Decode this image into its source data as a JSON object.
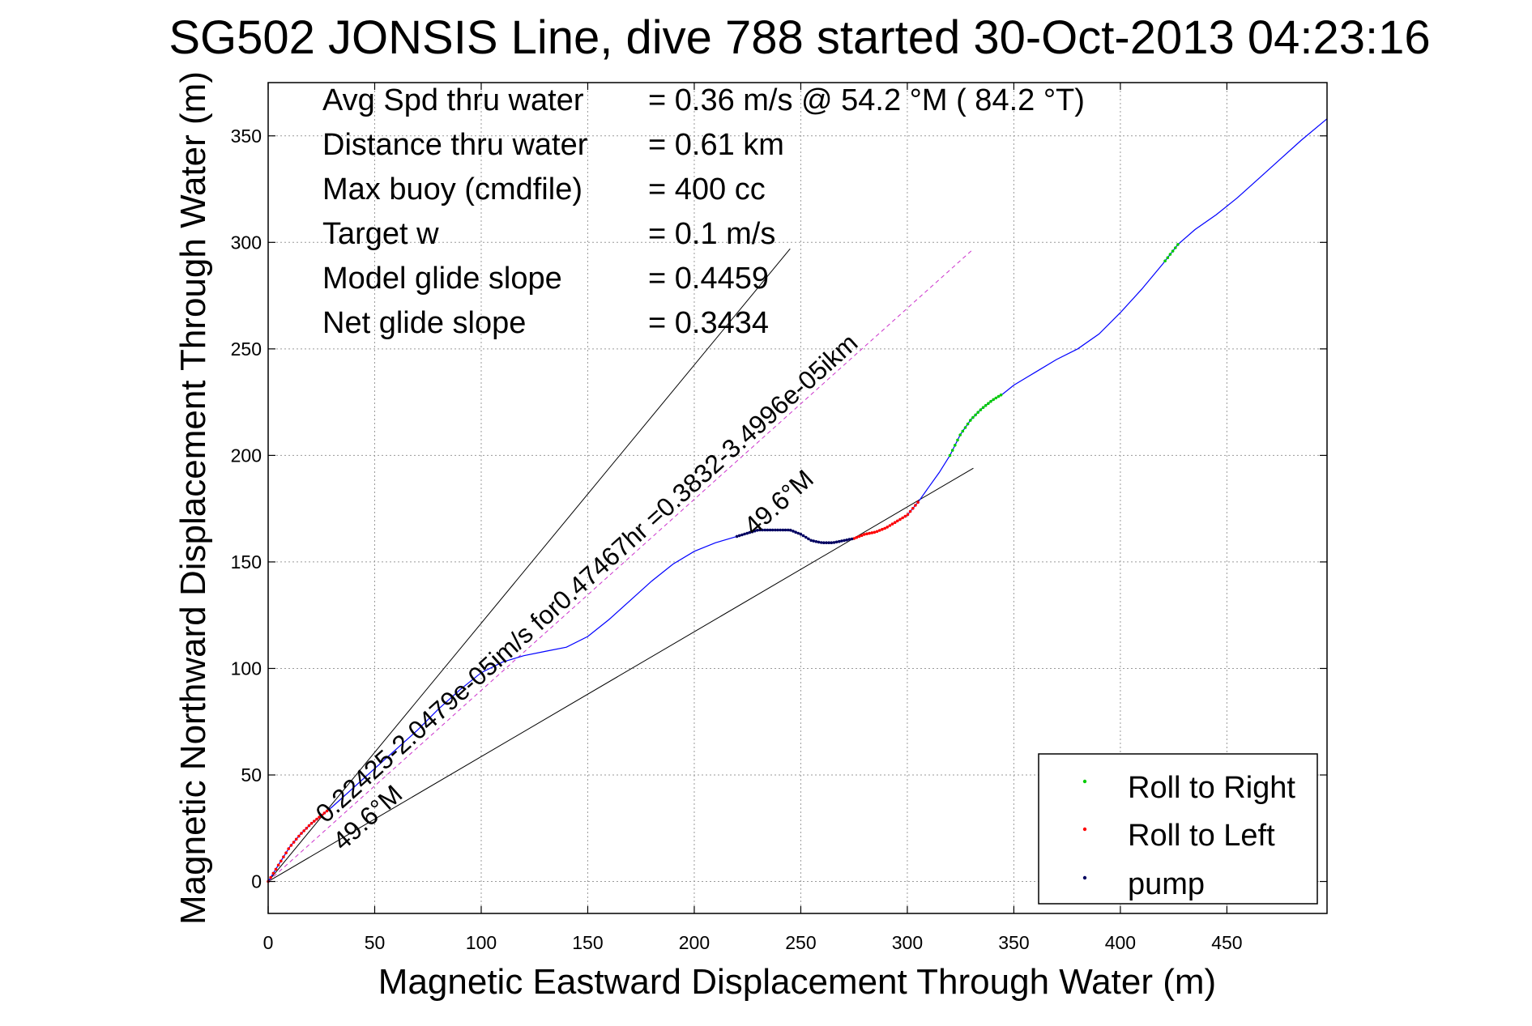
{
  "chart_data": {
    "type": "scatter",
    "title": "SG502 JONSIS Line, dive 788 started 30-Oct-2013 04:23:16",
    "xlabel": "Magnetic Eastward Displacement Through Water (m)",
    "ylabel": "Magnetic Northward Displacement Through Water (m)",
    "xlim": [
      0,
      497
    ],
    "ylim": [
      -15,
      375
    ],
    "xticks": [
      0,
      50,
      100,
      150,
      200,
      250,
      300,
      350,
      400,
      450
    ],
    "yticks": [
      0,
      50,
      100,
      150,
      200,
      250,
      300,
      350
    ],
    "grid": true,
    "stats": [
      {
        "label": "Avg Spd thru water",
        "value": "=  0.36 m/s @  54.2 °M ( 84.2 °T)"
      },
      {
        "label": "Distance thru water",
        "value": "=  0.61 km"
      },
      {
        "label": "Max buoy (cmdfile)",
        "value": "= 400 cc"
      },
      {
        "label": "Target w",
        "value": "= 0.1 m/s"
      },
      {
        "label": "Model glide slope",
        "value": "= 0.4459"
      },
      {
        "label": "Net glide slope",
        "value": "= 0.3434"
      }
    ],
    "annotations": [
      {
        "text": "0.22425-2.0479e-05im/s for0.47467hr =0.3832-3.4996e-05ikm",
        "x": 27,
        "y": 27
      },
      {
        "text": "49.6°M",
        "x": 228,
        "y": 162
      },
      {
        "text": "49.6°M",
        "x": 35,
        "y": 14
      }
    ],
    "reference_lines": [
      {
        "x": [
          0,
          245
        ],
        "y": [
          0,
          297
        ]
      },
      {
        "x": [
          0,
          331
        ],
        "y": [
          0,
          194
        ]
      },
      {
        "x": [
          0,
          330
        ],
        "y": [
          0,
          296
        ]
      }
    ],
    "track": {
      "name": "track",
      "color": "#0000ff",
      "x": [
        0,
        5,
        10,
        15,
        20,
        25,
        30,
        40,
        50,
        60,
        70,
        80,
        90,
        100,
        110,
        120,
        130,
        140,
        150,
        160,
        170,
        180,
        190,
        200,
        210,
        220,
        230,
        240,
        245,
        250,
        255,
        260,
        265,
        270,
        275,
        280,
        285,
        290,
        295,
        300,
        305,
        310,
        315,
        320,
        325,
        330,
        335,
        340,
        345,
        350,
        360,
        370,
        380,
        390,
        400,
        410,
        420,
        427,
        435,
        445,
        455,
        465,
        475,
        485,
        497
      ],
      "y": [
        0,
        8,
        16,
        22,
        27,
        31,
        35,
        44,
        53,
        62,
        71,
        81,
        90,
        98,
        103,
        106,
        108,
        110,
        115,
        123,
        132,
        141,
        149,
        155,
        159,
        162,
        165,
        165,
        165,
        163,
        160,
        159,
        159,
        160,
        161,
        163,
        164,
        166,
        169,
        172,
        178,
        185,
        192,
        200,
        210,
        217,
        222,
        226,
        229,
        233,
        239,
        245,
        250,
        257,
        267,
        278,
        290,
        299,
        306,
        313,
        321,
        330,
        339,
        348,
        358
      ]
    },
    "series": [
      {
        "name": "Roll to Right",
        "color": "#00cc00",
        "x_range": [
          320,
          345
        ],
        "extra_x_range": [
          421,
          428
        ]
      },
      {
        "name": "Roll to Left",
        "color": "#ff0000",
        "x_range": [
          0,
          28
        ],
        "extra_x_range": [
          275,
          305
        ]
      },
      {
        "name": "pump",
        "color": "#000060",
        "x_range": [
          220,
          275
        ]
      }
    ],
    "legend": {
      "placement": "bottom-right",
      "entries": [
        "Roll to Right",
        "Roll to Left",
        "pump"
      ]
    }
  }
}
